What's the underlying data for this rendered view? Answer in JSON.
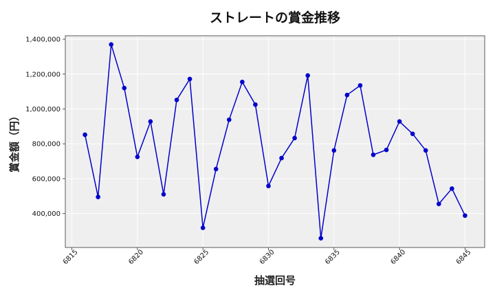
{
  "chart_data": {
    "type": "line",
    "title": "ストレートの賞金推移",
    "xlabel": "抽選回号",
    "ylabel": "賞金額（円）",
    "x": [
      6816,
      6817,
      6818,
      6819,
      6820,
      6821,
      6822,
      6823,
      6824,
      6825,
      6826,
      6827,
      6828,
      6829,
      6830,
      6831,
      6832,
      6833,
      6834,
      6835,
      6836,
      6837,
      6838,
      6839,
      6840,
      6841,
      6842,
      6843,
      6844,
      6845
    ],
    "values": [
      852000,
      495000,
      1370000,
      1120000,
      725000,
      928000,
      510000,
      1052000,
      1172000,
      318000,
      655000,
      938000,
      1155000,
      1025000,
      558000,
      718000,
      833000,
      1192000,
      258000,
      762000,
      1080000,
      1135000,
      737000,
      765000,
      928000,
      857000,
      762000,
      455000,
      543000,
      388000
    ],
    "xlim": [
      6814.5,
      6846.5
    ],
    "ylim": [
      205000,
      1420000
    ],
    "xticks": [
      6815,
      6820,
      6825,
      6830,
      6835,
      6840,
      6845
    ],
    "xtick_labels": [
      "6815",
      "6820",
      "6825",
      "6830",
      "6835",
      "6840",
      "6845"
    ],
    "yticks": [
      400000,
      600000,
      800000,
      1000000,
      1200000,
      1400000
    ],
    "ytick_labels": [
      "400,000",
      "600,000",
      "800,000",
      "1,000,000",
      "1,200,000",
      "1,400,000"
    ],
    "grid": true,
    "colors": {
      "line": "#0000cc",
      "marker": "#0000cc",
      "plot_bg": "#efefef",
      "grid": "#ffffff"
    }
  }
}
